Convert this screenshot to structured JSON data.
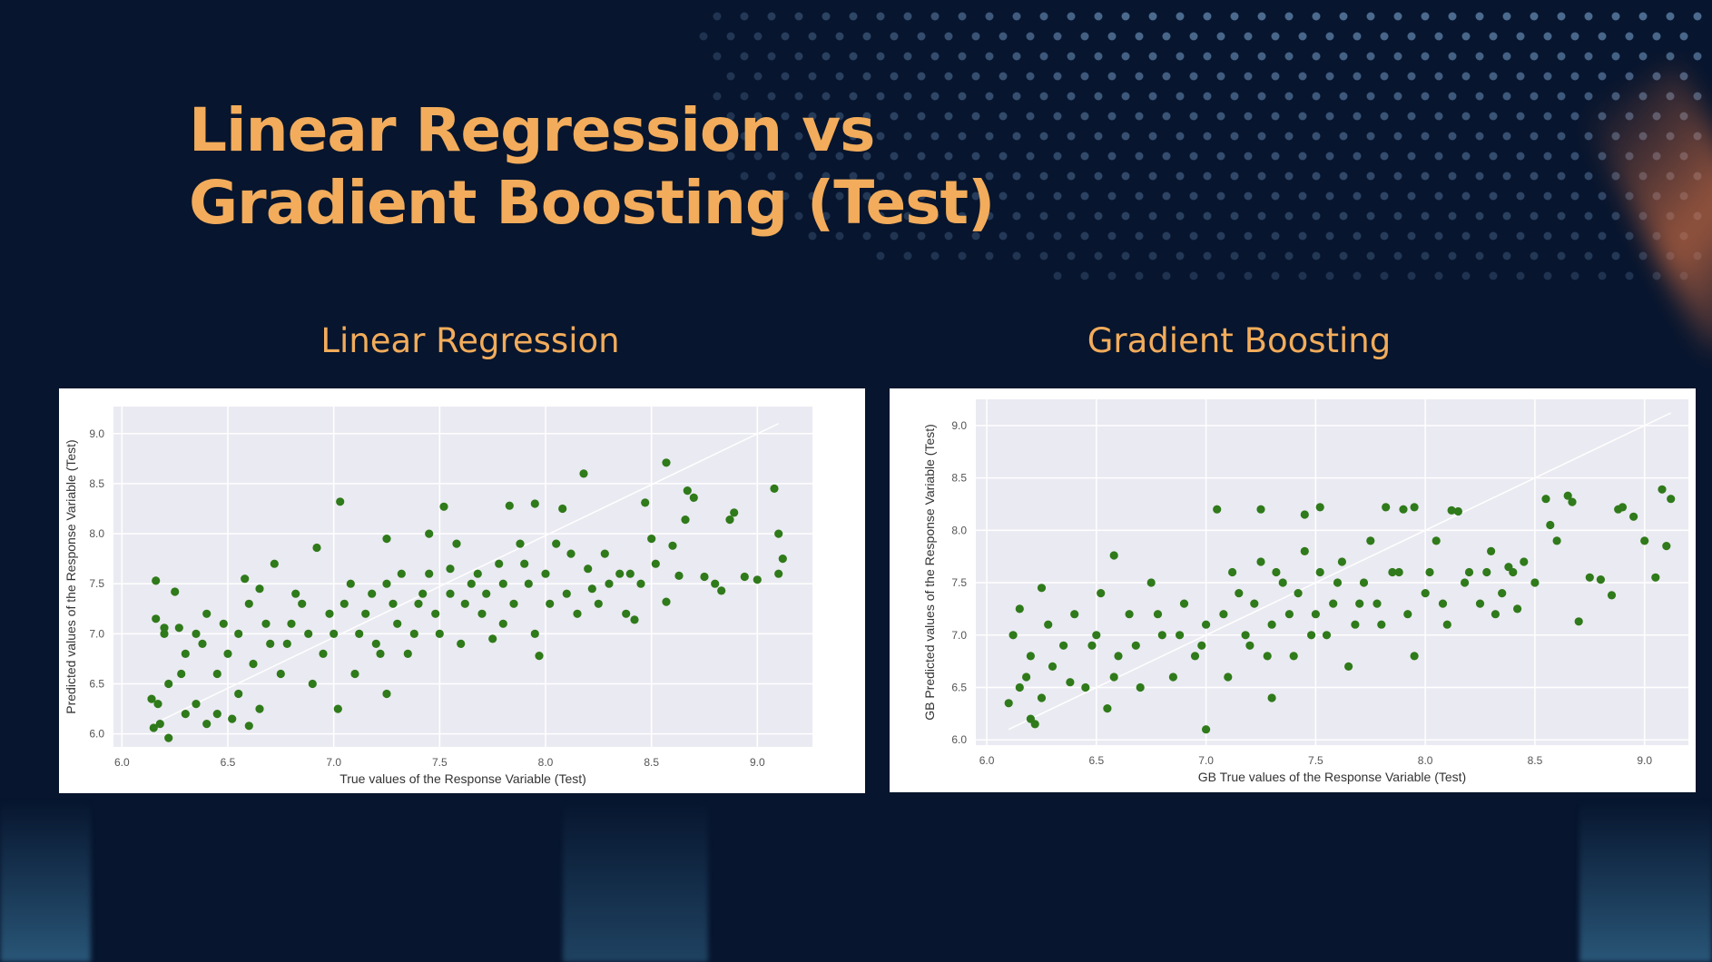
{
  "slide": {
    "title": "Linear Regression vs\nGradient Boosting (Test)",
    "accent_color": "#f2ac5b",
    "background_color": "#07152e"
  },
  "chart_data": [
    {
      "type": "scatter",
      "heading": "Linear Regression",
      "xlabel": "True values of the Response Variable (Test)",
      "ylabel": "Predicted values of the Response Variable (Test)",
      "xlim": [
        5.96,
        9.26
      ],
      "ylim": [
        5.87,
        9.27
      ],
      "xticks": [
        "6.0",
        "6.5",
        "7.0",
        "7.5",
        "8.0",
        "8.5",
        "9.0"
      ],
      "yticks": [
        "6.0",
        "6.5",
        "7.0",
        "7.5",
        "8.0",
        "8.5",
        "9.0"
      ],
      "grid": true,
      "marker_color": "#2f7a1a",
      "plot_background": "#eaeaf2",
      "reference_line": {
        "from": [
          6.15,
          6.1
        ],
        "to": [
          9.1,
          9.1
        ],
        "color": "#ffffff"
      },
      "points": [
        [
          6.15,
          6.06
        ],
        [
          6.18,
          6.1
        ],
        [
          6.22,
          5.96
        ],
        [
          6.14,
          6.35
        ],
        [
          6.17,
          6.3
        ],
        [
          6.16,
          7.15
        ],
        [
          6.2,
          7.06
        ],
        [
          6.16,
          7.53
        ],
        [
          6.25,
          7.42
        ],
        [
          6.27,
          7.06
        ],
        [
          6.22,
          6.5
        ],
        [
          6.3,
          6.2
        ],
        [
          6.35,
          6.3
        ],
        [
          6.4,
          6.1
        ],
        [
          6.45,
          6.2
        ],
        [
          6.52,
          6.15
        ],
        [
          6.6,
          6.08
        ],
        [
          6.65,
          6.25
        ],
        [
          6.3,
          6.8
        ],
        [
          6.35,
          7.0
        ],
        [
          6.4,
          7.2
        ],
        [
          6.45,
          6.6
        ],
        [
          6.5,
          6.8
        ],
        [
          6.55,
          7.0
        ],
        [
          6.6,
          7.3
        ],
        [
          6.58,
          7.55
        ],
        [
          6.65,
          7.45
        ],
        [
          6.7,
          6.9
        ],
        [
          6.72,
          7.7
        ],
        [
          6.75,
          6.6
        ],
        [
          6.8,
          7.1
        ],
        [
          6.85,
          7.3
        ],
        [
          6.9,
          6.5
        ],
        [
          6.95,
          6.8
        ],
        [
          6.92,
          7.86
        ],
        [
          7.0,
          7.0
        ],
        [
          7.02,
          6.25
        ],
        [
          7.05,
          7.3
        ],
        [
          7.03,
          8.32
        ],
        [
          7.1,
          6.6
        ],
        [
          7.15,
          7.2
        ],
        [
          7.2,
          6.9
        ],
        [
          7.25,
          7.5
        ],
        [
          7.25,
          6.4
        ],
        [
          7.3,
          7.1
        ],
        [
          7.25,
          7.95
        ],
        [
          7.35,
          6.8
        ],
        [
          7.4,
          7.3
        ],
        [
          7.45,
          7.6
        ],
        [
          7.45,
          8.0
        ],
        [
          7.5,
          7.0
        ],
        [
          7.52,
          8.27
        ],
        [
          7.55,
          7.4
        ],
        [
          7.58,
          7.9
        ],
        [
          7.6,
          6.9
        ],
        [
          7.65,
          7.5
        ],
        [
          7.7,
          7.2
        ],
        [
          7.75,
          6.95
        ],
        [
          7.8,
          7.5
        ],
        [
          7.8,
          7.1
        ],
        [
          7.83,
          8.28
        ],
        [
          7.9,
          7.7
        ],
        [
          7.95,
          8.3
        ],
        [
          7.95,
          7.0
        ],
        [
          7.97,
          6.78
        ],
        [
          8.0,
          7.6
        ],
        [
          8.05,
          7.9
        ],
        [
          8.08,
          8.25
        ],
        [
          8.1,
          7.4
        ],
        [
          8.15,
          7.2
        ],
        [
          8.18,
          8.6
        ],
        [
          8.2,
          7.65
        ],
        [
          8.25,
          7.3
        ],
        [
          8.3,
          7.5
        ],
        [
          8.4,
          7.6
        ],
        [
          8.42,
          7.14
        ],
        [
          8.45,
          7.5
        ],
        [
          8.47,
          8.31
        ],
        [
          8.5,
          7.95
        ],
        [
          8.52,
          7.7
        ],
        [
          8.57,
          7.32
        ],
        [
          8.6,
          7.88
        ],
        [
          8.57,
          8.71
        ],
        [
          8.63,
          7.58
        ],
        [
          8.66,
          8.14
        ],
        [
          8.67,
          8.43
        ],
        [
          8.7,
          8.36
        ],
        [
          8.75,
          7.57
        ],
        [
          8.8,
          7.5
        ],
        [
          8.83,
          7.43
        ],
        [
          8.87,
          8.14
        ],
        [
          8.89,
          8.21
        ],
        [
          8.94,
          7.57
        ],
        [
          9.0,
          7.54
        ],
        [
          9.08,
          8.45
        ],
        [
          9.1,
          8.0
        ],
        [
          9.1,
          7.6
        ],
        [
          9.12,
          7.75
        ],
        [
          6.2,
          7.0
        ],
        [
          6.28,
          6.6
        ],
        [
          6.38,
          6.9
        ],
        [
          6.48,
          7.1
        ],
        [
          6.55,
          6.4
        ],
        [
          6.62,
          6.7
        ],
        [
          6.68,
          7.1
        ],
        [
          6.78,
          6.9
        ],
        [
          6.82,
          7.4
        ],
        [
          6.88,
          7.0
        ],
        [
          6.98,
          7.2
        ],
        [
          7.08,
          7.5
        ],
        [
          7.12,
          7.0
        ],
        [
          7.18,
          7.4
        ],
        [
          7.22,
          6.8
        ],
        [
          7.28,
          7.3
        ],
        [
          7.32,
          7.6
        ],
        [
          7.38,
          7.0
        ],
        [
          7.42,
          7.4
        ],
        [
          7.48,
          7.2
        ],
        [
          7.55,
          7.65
        ],
        [
          7.62,
          7.3
        ],
        [
          7.68,
          7.6
        ],
        [
          7.72,
          7.4
        ],
        [
          7.78,
          7.7
        ],
        [
          7.85,
          7.3
        ],
        [
          7.88,
          7.9
        ],
        [
          7.92,
          7.5
        ],
        [
          8.02,
          7.3
        ],
        [
          8.12,
          7.8
        ],
        [
          8.22,
          7.45
        ],
        [
          8.28,
          7.8
        ],
        [
          8.35,
          7.6
        ],
        [
          8.38,
          7.2
        ]
      ]
    },
    {
      "type": "scatter",
      "heading": "Gradient Boosting",
      "xlabel": "GB True values of the Response Variable (Test)",
      "ylabel": "GB Predicted values of the Response Variable (Test)",
      "xlim": [
        5.95,
        9.2
      ],
      "ylim": [
        5.95,
        9.25
      ],
      "xticks": [
        "6.0",
        "6.5",
        "7.0",
        "7.5",
        "8.0",
        "8.5",
        "9.0"
      ],
      "yticks": [
        "6.0",
        "6.5",
        "7.0",
        "7.5",
        "8.0",
        "8.5",
        "9.0"
      ],
      "grid": true,
      "marker_color": "#2f7a1a",
      "plot_background": "#eaeaf2",
      "reference_line": {
        "from": [
          6.1,
          6.1
        ],
        "to": [
          9.12,
          9.12
        ],
        "color": "#ffffff"
      },
      "points": [
        [
          6.1,
          6.35
        ],
        [
          6.15,
          6.5
        ],
        [
          6.2,
          6.2
        ],
        [
          6.22,
          6.15
        ],
        [
          6.25,
          6.4
        ],
        [
          6.12,
          7.0
        ],
        [
          6.15,
          7.25
        ],
        [
          6.2,
          6.8
        ],
        [
          6.25,
          7.45
        ],
        [
          6.3,
          6.7
        ],
        [
          6.35,
          6.9
        ],
        [
          6.4,
          7.2
        ],
        [
          6.45,
          6.5
        ],
        [
          6.5,
          7.0
        ],
        [
          6.52,
          7.4
        ],
        [
          6.55,
          6.3
        ],
        [
          6.58,
          7.76
        ],
        [
          6.6,
          6.8
        ],
        [
          6.65,
          7.2
        ],
        [
          6.7,
          6.5
        ],
        [
          6.75,
          7.5
        ],
        [
          6.8,
          7.0
        ],
        [
          6.85,
          6.6
        ],
        [
          6.9,
          7.3
        ],
        [
          6.95,
          6.8
        ],
        [
          7.0,
          7.1
        ],
        [
          7.0,
          6.1
        ],
        [
          7.05,
          8.2
        ],
        [
          7.1,
          6.6
        ],
        [
          7.15,
          7.4
        ],
        [
          7.2,
          6.9
        ],
        [
          7.25,
          7.7
        ],
        [
          7.25,
          8.2
        ],
        [
          7.3,
          7.1
        ],
        [
          7.3,
          6.4
        ],
        [
          7.35,
          7.5
        ],
        [
          7.4,
          6.8
        ],
        [
          7.45,
          7.8
        ],
        [
          7.45,
          8.15
        ],
        [
          7.5,
          7.2
        ],
        [
          7.52,
          8.22
        ],
        [
          7.55,
          7.0
        ],
        [
          7.6,
          7.5
        ],
        [
          7.65,
          6.7
        ],
        [
          7.7,
          7.3
        ],
        [
          7.75,
          7.9
        ],
        [
          7.8,
          7.1
        ],
        [
          7.82,
          8.22
        ],
        [
          7.85,
          7.6
        ],
        [
          7.9,
          8.2
        ],
        [
          7.95,
          8.22
        ],
        [
          7.95,
          6.8
        ],
        [
          8.0,
          7.4
        ],
        [
          8.05,
          7.9
        ],
        [
          8.1,
          7.1
        ],
        [
          8.12,
          8.19
        ],
        [
          8.15,
          8.18
        ],
        [
          8.2,
          7.6
        ],
        [
          8.25,
          7.3
        ],
        [
          8.3,
          7.8
        ],
        [
          8.35,
          7.4
        ],
        [
          8.4,
          7.6
        ],
        [
          8.42,
          7.25
        ],
        [
          8.45,
          7.7
        ],
        [
          8.5,
          7.5
        ],
        [
          8.55,
          8.3
        ],
        [
          8.57,
          8.05
        ],
        [
          8.6,
          7.9
        ],
        [
          8.65,
          8.33
        ],
        [
          8.67,
          8.27
        ],
        [
          8.7,
          7.13
        ],
        [
          8.75,
          7.55
        ],
        [
          8.8,
          7.53
        ],
        [
          8.85,
          7.38
        ],
        [
          8.88,
          8.2
        ],
        [
          8.9,
          8.22
        ],
        [
          8.95,
          8.13
        ],
        [
          9.0,
          7.9
        ],
        [
          9.05,
          7.55
        ],
        [
          9.08,
          8.39
        ],
        [
          9.1,
          7.85
        ],
        [
          9.12,
          8.3
        ],
        [
          6.18,
          6.6
        ],
        [
          6.28,
          7.1
        ],
        [
          6.38,
          6.55
        ],
        [
          6.48,
          6.9
        ],
        [
          6.58,
          6.6
        ],
        [
          6.68,
          6.9
        ],
        [
          6.78,
          7.2
        ],
        [
          6.88,
          7.0
        ],
        [
          6.98,
          6.9
        ],
        [
          7.08,
          7.2
        ],
        [
          7.12,
          7.6
        ],
        [
          7.18,
          7.0
        ],
        [
          7.22,
          7.3
        ],
        [
          7.28,
          6.8
        ],
        [
          7.32,
          7.6
        ],
        [
          7.38,
          7.2
        ],
        [
          7.42,
          7.4
        ],
        [
          7.48,
          7.0
        ],
        [
          7.52,
          7.6
        ],
        [
          7.58,
          7.3
        ],
        [
          7.62,
          7.7
        ],
        [
          7.68,
          7.1
        ],
        [
          7.72,
          7.5
        ],
        [
          7.78,
          7.3
        ],
        [
          7.88,
          7.6
        ],
        [
          7.92,
          7.2
        ],
        [
          8.02,
          7.6
        ],
        [
          8.08,
          7.3
        ],
        [
          8.18,
          7.5
        ],
        [
          8.28,
          7.6
        ],
        [
          8.32,
          7.2
        ],
        [
          8.38,
          7.65
        ]
      ]
    }
  ]
}
